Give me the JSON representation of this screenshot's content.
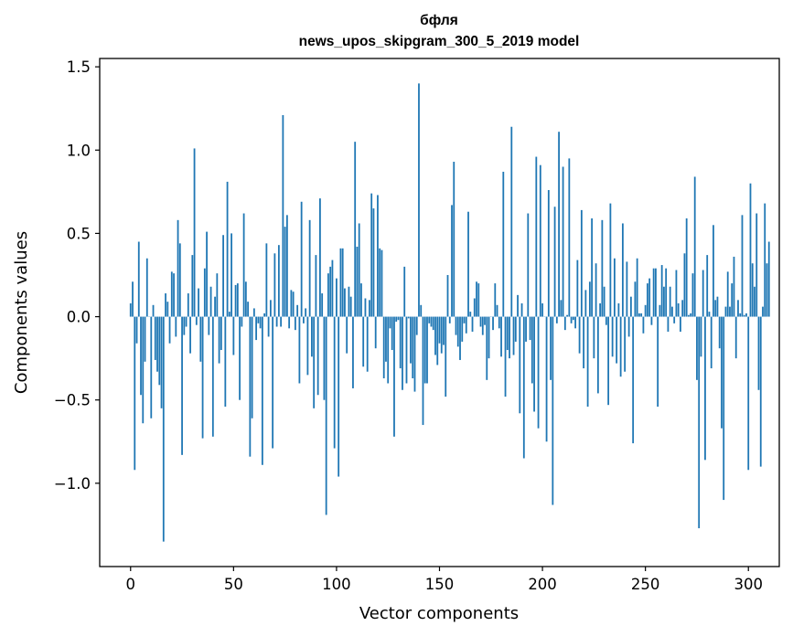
{
  "chart_data": {
    "type": "bar",
    "title_line1": "бфля",
    "title_line2": "news_upos_skipgram_300_5_2019 model",
    "xlabel": "Vector components",
    "ylabel": "Components values",
    "xlim": [
      -15,
      315
    ],
    "ylim": [
      -1.5,
      1.55
    ],
    "x_ticks": [
      0,
      50,
      100,
      150,
      200,
      250,
      300
    ],
    "x_tick_labels": [
      "0",
      "50",
      "100",
      "150",
      "200",
      "250",
      "300"
    ],
    "y_ticks": [
      -1.0,
      -0.5,
      0.0,
      0.5,
      1.0,
      1.5
    ],
    "y_tick_labels": [
      "−1.0",
      "−0.5",
      "0.0",
      "0.5",
      "1.0",
      "1.5"
    ],
    "bar_color": "#1f77b4",
    "values": [
      0.08,
      0.21,
      -0.92,
      -0.16,
      0.45,
      -0.47,
      -0.64,
      -0.27,
      0.35,
      0.0,
      -0.61,
      0.07,
      -0.26,
      -0.33,
      -0.41,
      -0.55,
      -1.35,
      0.14,
      0.09,
      -0.16,
      0.27,
      0.26,
      -0.12,
      0.58,
      0.44,
      -0.83,
      -0.11,
      -0.06,
      0.14,
      -0.22,
      0.37,
      1.01,
      -0.05,
      0.17,
      -0.27,
      -0.73,
      0.29,
      0.51,
      -0.11,
      0.18,
      -0.72,
      0.12,
      0.26,
      -0.28,
      -0.2,
      0.49,
      -0.54,
      0.81,
      0.03,
      0.5,
      -0.23,
      0.19,
      0.2,
      -0.5,
      -0.06,
      0.62,
      0.21,
      0.09,
      -0.84,
      -0.61,
      0.05,
      -0.14,
      -0.04,
      -0.07,
      -0.89,
      0.02,
      0.44,
      -0.12,
      0.1,
      -0.79,
      0.38,
      -0.06,
      0.43,
      -0.06,
      1.21,
      0.54,
      0.61,
      -0.07,
      0.16,
      0.15,
      -0.08,
      0.07,
      -0.4,
      0.69,
      -0.04,
      0.05,
      -0.35,
      0.58,
      -0.24,
      -0.55,
      0.37,
      -0.47,
      0.71,
      0.14,
      -0.5,
      -1.19,
      0.26,
      0.3,
      0.34,
      -0.79,
      0.23,
      -0.96,
      0.41,
      0.41,
      0.17,
      -0.22,
      0.18,
      0.12,
      -0.43,
      1.05,
      0.42,
      0.56,
      0.2,
      -0.3,
      0.11,
      -0.33,
      0.1,
      0.74,
      0.65,
      -0.19,
      0.73,
      0.41,
      0.4,
      -0.37,
      -0.27,
      -0.4,
      -0.07,
      -0.2,
      -0.72,
      -0.03,
      -0.02,
      -0.31,
      -0.44,
      0.3,
      -0.4,
      -0.01,
      -0.28,
      -0.37,
      -0.45,
      -0.11,
      1.4,
      0.07,
      -0.65,
      -0.4,
      -0.4,
      -0.04,
      -0.06,
      -0.08,
      -0.23,
      -0.29,
      -0.16,
      -0.22,
      -0.17,
      -0.48,
      0.25,
      -0.04,
      0.67,
      0.93,
      -0.11,
      -0.18,
      -0.26,
      -0.15,
      -0.04,
      -0.1,
      0.63,
      0.03,
      -0.09,
      0.11,
      0.21,
      0.2,
      -0.06,
      -0.11,
      -0.05,
      -0.38,
      -0.25,
      0.0,
      -0.08,
      0.2,
      0.07,
      -0.07,
      -0.24,
      0.87,
      -0.48,
      -0.2,
      -0.25,
      1.14,
      -0.23,
      -0.15,
      0.13,
      -0.58,
      0.08,
      -0.85,
      -0.15,
      0.62,
      -0.14,
      -0.4,
      -0.57,
      0.96,
      -0.67,
      0.91,
      0.08,
      0.0,
      -0.75,
      0.76,
      -0.38,
      -1.13,
      0.66,
      -0.04,
      1.11,
      0.1,
      0.9,
      -0.08,
      0.01,
      0.95,
      -0.04,
      -0.02,
      -0.07,
      0.34,
      -0.22,
      0.64,
      -0.31,
      0.16,
      -0.54,
      0.21,
      0.59,
      -0.25,
      0.32,
      -0.46,
      0.08,
      0.58,
      0.18,
      -0.05,
      -0.53,
      0.68,
      -0.24,
      0.35,
      -0.28,
      0.08,
      -0.36,
      0.56,
      -0.33,
      0.33,
      -0.12,
      0.12,
      -0.76,
      0.21,
      0.35,
      0.02,
      0.02,
      -0.1,
      0.07,
      0.2,
      0.23,
      -0.05,
      0.29,
      0.29,
      -0.54,
      0.07,
      0.31,
      0.18,
      0.29,
      -0.09,
      0.18,
      0.06,
      -0.04,
      0.28,
      0.08,
      -0.09,
      0.1,
      0.38,
      0.59,
      0.01,
      0.02,
      0.26,
      0.84,
      -0.38,
      -1.27,
      -0.24,
      0.28,
      -0.86,
      0.37,
      0.03,
      -0.31,
      0.55,
      0.1,
      0.12,
      -0.19,
      -0.67,
      -1.1,
      0.06,
      0.27,
      0.06,
      0.2,
      0.36,
      -0.25,
      0.1,
      0.02,
      0.61,
      0.01,
      0.02,
      -0.92,
      0.8,
      0.32,
      0.18,
      0.62,
      -0.44,
      -0.9,
      0.06,
      0.68,
      0.32,
      0.45
    ]
  }
}
